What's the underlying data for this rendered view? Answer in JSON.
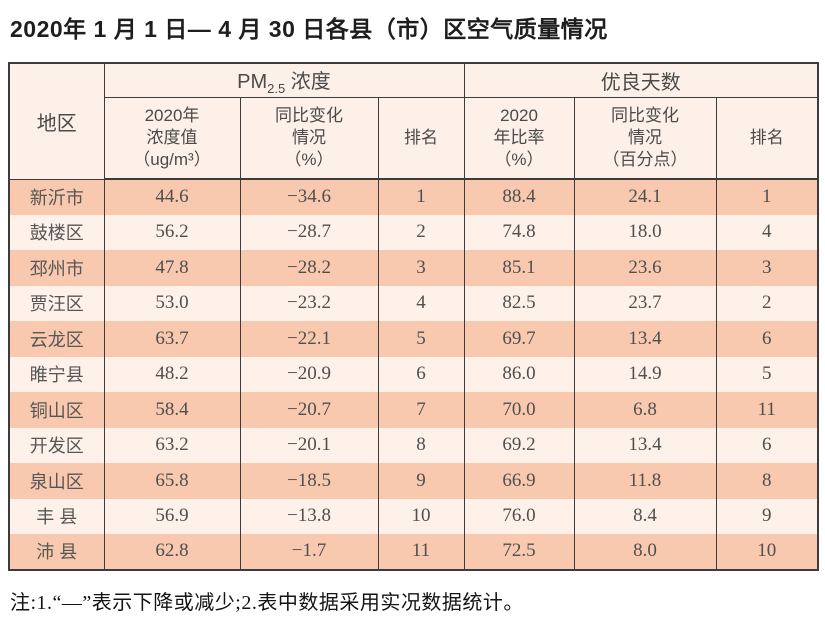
{
  "title": "2020年 1 月 1 日— 4 月 30 日各县（市）区空气质量情况",
  "note": "注:1.“—”表示下降或减少;2.表中数据采用实况数据统计。",
  "colors": {
    "row_odd": "#f8c8af",
    "row_even": "#fdf1e9",
    "header_bg": "#fcf0e8",
    "border": "#3c3c3c"
  },
  "table": {
    "region_header": "地区",
    "groups": {
      "pm25": {
        "prefix": "PM",
        "subscript": "2.5",
        "suffix": " 浓度"
      },
      "good_days": {
        "label": "优良天数"
      }
    },
    "subheaders": [
      {
        "lines": [
          "2020年",
          "浓度值",
          "（ug/m³）"
        ]
      },
      {
        "lines": [
          "同比变化",
          "情况",
          "（%）"
        ]
      },
      {
        "lines": [
          "排名"
        ]
      },
      {
        "lines": [
          "2020",
          "年比率",
          "（%）"
        ]
      },
      {
        "lines": [
          "同比变化",
          "情况",
          "（百分点）"
        ]
      },
      {
        "lines": [
          "排名"
        ]
      }
    ],
    "rows": [
      {
        "region": "新沂市",
        "cells": [
          "44.6",
          "−34.6",
          "1",
          "88.4",
          "24.1",
          "1"
        ]
      },
      {
        "region": "鼓楼区",
        "cells": [
          "56.2",
          "−28.7",
          "2",
          "74.8",
          "18.0",
          "4"
        ]
      },
      {
        "region": "邳州市",
        "cells": [
          "47.8",
          "−28.2",
          "3",
          "85.1",
          "23.6",
          "3"
        ]
      },
      {
        "region": "贾汪区",
        "cells": [
          "53.0",
          "−23.2",
          "4",
          "82.5",
          "23.7",
          "2"
        ]
      },
      {
        "region": "云龙区",
        "cells": [
          "63.7",
          "−22.1",
          "5",
          "69.7",
          "13.4",
          "6"
        ]
      },
      {
        "region": "睢宁县",
        "cells": [
          "48.2",
          "−20.9",
          "6",
          "86.0",
          "14.9",
          "5"
        ]
      },
      {
        "region": "铜山区",
        "cells": [
          "58.4",
          "−20.7",
          "7",
          "70.0",
          "6.8",
          "11"
        ]
      },
      {
        "region": "开发区",
        "cells": [
          "63.2",
          "−20.1",
          "8",
          "69.2",
          "13.4",
          "6"
        ]
      },
      {
        "region": "泉山区",
        "cells": [
          "65.8",
          "−18.5",
          "9",
          "66.9",
          "11.8",
          "8"
        ]
      },
      {
        "region": "丰 县",
        "cells": [
          "56.9",
          "−13.8",
          "10",
          "76.0",
          "8.4",
          "9"
        ]
      },
      {
        "region": "沛 县",
        "cells": [
          "62.8",
          "−1.7",
          "11",
          "72.5",
          "8.0",
          "10"
        ]
      }
    ]
  }
}
